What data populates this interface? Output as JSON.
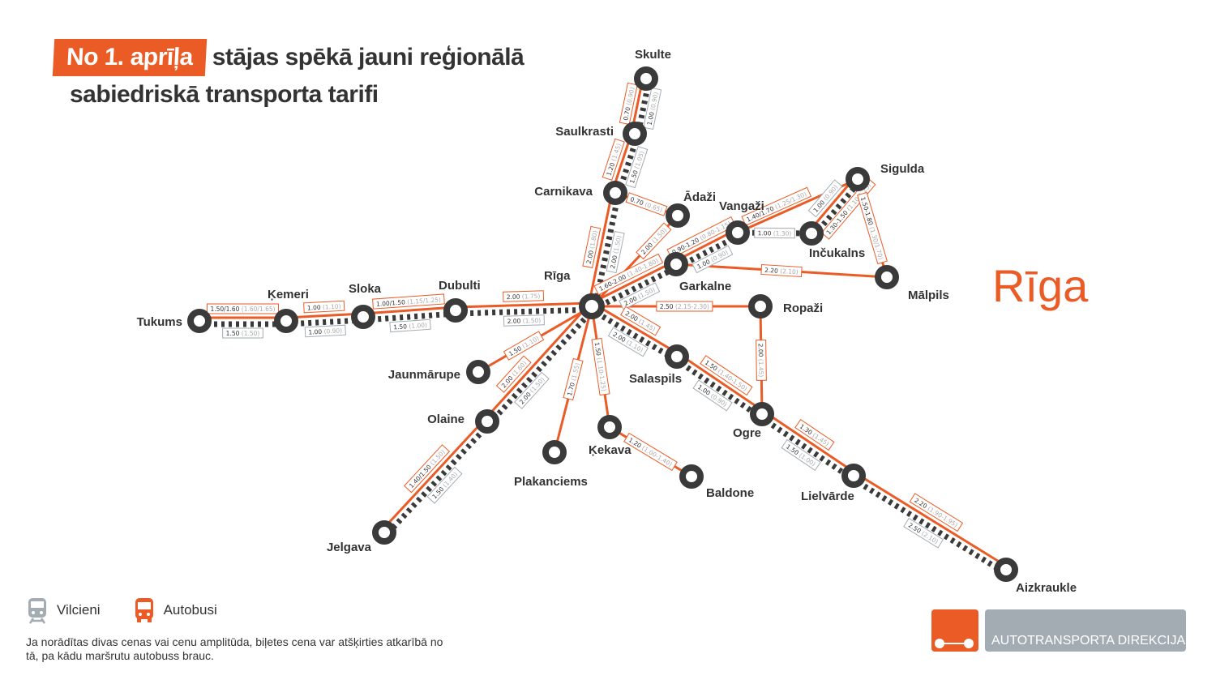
{
  "title": {
    "badge": "No 1. aprīļa",
    "line1": "stājas spēkā jauni reģionālā",
    "line2": "sabiedriskā transporta tarifi"
  },
  "region_label": "Rīga",
  "colors": {
    "bus": "#ea5b26",
    "rail": "#3a3a3a",
    "rail_label_border": "#a3acb3",
    "logo_grey": "#a3acb3"
  },
  "stations": {
    "tukums": "Tukums",
    "kemeri": "Ķemeri",
    "sloka": "Sloka",
    "dubulti": "Dubulti",
    "riga": "Rīga",
    "skulte": "Skulte",
    "saulkrasti": "Saulkrasti",
    "carnikava": "Carnikava",
    "adazi": "Ādaži",
    "vangazi": "Vangaži",
    "incukalns": "Inčukalns",
    "sigulda": "Sigulda",
    "malpils": "Mālpils",
    "garkalne": "Garkalne",
    "ropazi": "Ropaži",
    "jaunmarupe": "Jaunmārupe",
    "olaine": "Olaine",
    "jelgava": "Jelgava",
    "plakanciems": "Plakanciems",
    "kekava": "Ķekava",
    "baldone": "Baldone",
    "salaspils": "Salaspils",
    "ogre": "Ogre",
    "lielvarde": "Lielvārde",
    "aizkraukle": "Aizkraukle"
  },
  "rail_edges": [
    {
      "from": "tukums",
      "to": "kemeri",
      "price": "1.50",
      "old": "(1.50)"
    },
    {
      "from": "kemeri",
      "to": "sloka",
      "price": "1.00",
      "old": "(0.90)"
    },
    {
      "from": "sloka",
      "to": "dubulti",
      "price": "1.50",
      "old": "(1.00)"
    },
    {
      "from": "dubulti",
      "to": "riga",
      "price": "2.00",
      "old": "(1.50)"
    },
    {
      "from": "skulte",
      "to": "saulkrasti",
      "price": "1.00",
      "old": "(0.90)"
    },
    {
      "from": "saulkrasti",
      "to": "carnikava",
      "price": "1.50",
      "old": "(1.05)"
    },
    {
      "from": "carnikava",
      "to": "riga",
      "price": "2.00",
      "old": "(1.50)"
    },
    {
      "from": "riga",
      "to": "garkalne",
      "price": "2.00",
      "old": "(1.50)"
    },
    {
      "from": "garkalne",
      "to": "vangazi",
      "price": "1.00",
      "old": "(0.90)"
    },
    {
      "from": "vangazi",
      "to": "incukalns",
      "price": "1.00",
      "old": "(1.30)"
    },
    {
      "from": "incukalns",
      "to": "sigulda",
      "price": "1.00",
      "old": "(0.90)"
    },
    {
      "from": "riga",
      "to": "salaspils",
      "price": "2.00",
      "old": "(1.10)"
    },
    {
      "from": "salaspils",
      "to": "ogre",
      "price": "1.00",
      "old": "(0.90)"
    },
    {
      "from": "ogre",
      "to": "lielvarde",
      "price": "1.50",
      "old": "(1.00)"
    },
    {
      "from": "lielvarde",
      "to": "aizkraukle",
      "price": "2.50",
      "old": "(2.10)"
    },
    {
      "from": "riga",
      "to": "olaine",
      "price": "2.00",
      "old": "(1.50)"
    },
    {
      "from": "olaine",
      "to": "jelgava",
      "price": "1.50",
      "old": "(1.40)"
    }
  ],
  "bus_edges": [
    {
      "from": "tukums",
      "to": "kemeri",
      "price": "1.50/1.60",
      "old": "(1.60/1.65)"
    },
    {
      "from": "kemeri",
      "to": "sloka",
      "price": "1.00",
      "old": "(1.10)"
    },
    {
      "from": "sloka",
      "to": "dubulti",
      "price": "1.00/1.50",
      "old": "(1.15/1.25)"
    },
    {
      "from": "dubulti",
      "to": "riga",
      "price": "2.00",
      "old": "(1.75)"
    },
    {
      "from": "skulte",
      "to": "saulkrasti",
      "price": "0.70",
      "old": "(0.90)"
    },
    {
      "from": "saulkrasti",
      "to": "carnikava",
      "price": "1.20",
      "old": "(1.45)"
    },
    {
      "from": "carnikava",
      "to": "riga",
      "price": "2.00",
      "old": "(1.80)"
    },
    {
      "from": "carnikava",
      "to": "adazi",
      "price": "0.70",
      "old": "(0.65)"
    },
    {
      "from": "adazi",
      "to": "riga",
      "price": "2.00",
      "old": "(1.50)"
    },
    {
      "from": "riga",
      "to": "garkalne",
      "price": "1.60-2.00",
      "old": "(1.40-1.80)"
    },
    {
      "from": "garkalne",
      "to": "vangazi",
      "price": "0.90-1.20",
      "old": "(0.80-1.15)"
    },
    {
      "from": "vangazi",
      "to": "sigulda",
      "price": "1.40/1.70",
      "old": "(1.25/1.30)"
    },
    {
      "from": "incukalns",
      "to": "sigulda",
      "price": "1.30-1.50",
      "old": "(1.10/1.25)"
    },
    {
      "from": "sigulda",
      "to": "malpils",
      "price": "1.50-1.80",
      "old": "(1.30/1.70)"
    },
    {
      "from": "garkalne",
      "to": "malpils",
      "price": "2.20",
      "old": "(2.10)"
    },
    {
      "from": "riga",
      "to": "ropazi",
      "price": "2.50",
      "old": "(2.15-2.30)"
    },
    {
      "from": "ropazi",
      "to": "ogre",
      "price": "2.00",
      "old": "(1.45)"
    },
    {
      "from": "riga",
      "to": "salaspils",
      "price": "2.00",
      "old": "(1.45)"
    },
    {
      "from": "salaspils",
      "to": "ogre",
      "price": "1.50",
      "old": "(1.40-1.50)"
    },
    {
      "from": "ogre",
      "to": "lielvarde",
      "price": "1.30",
      "old": "(1.45)"
    },
    {
      "from": "lielvarde",
      "to": "aizkraukle",
      "price": "2.20",
      "old": "(1.90-1.95)"
    },
    {
      "from": "riga",
      "to": "jaunmarupe",
      "price": "1.50",
      "old": "(1.10)"
    },
    {
      "from": "riga",
      "to": "olaine",
      "price": "2.00",
      "old": "(1.60)"
    },
    {
      "from": "olaine",
      "to": "jelgava",
      "price": "1.40/1.50",
      "old": "(1.50)"
    },
    {
      "from": "riga",
      "to": "plakanciems",
      "price": "1.70",
      "old": "(1.55)"
    },
    {
      "from": "riga",
      "to": "kekava",
      "price": "1.50",
      "old": "(1.10-1.25)"
    },
    {
      "from": "kekava",
      "to": "baldone",
      "price": "1.20",
      "old": "(1.00-1.40)"
    }
  ],
  "legend": {
    "rail": {
      "icon": "train-icon",
      "label": "Vilcieni"
    },
    "bus": {
      "icon": "bus-icon",
      "label": "Autobusi"
    }
  },
  "note": "Ja norādītas divas cenas vai cenu amplitūda, biļetes cena var atšķirties atkarībā no tā, pa kādu maršrutu autobuss brauc.",
  "logo": {
    "text": "AUTOTRANSPORTA DIREKCIJA"
  }
}
